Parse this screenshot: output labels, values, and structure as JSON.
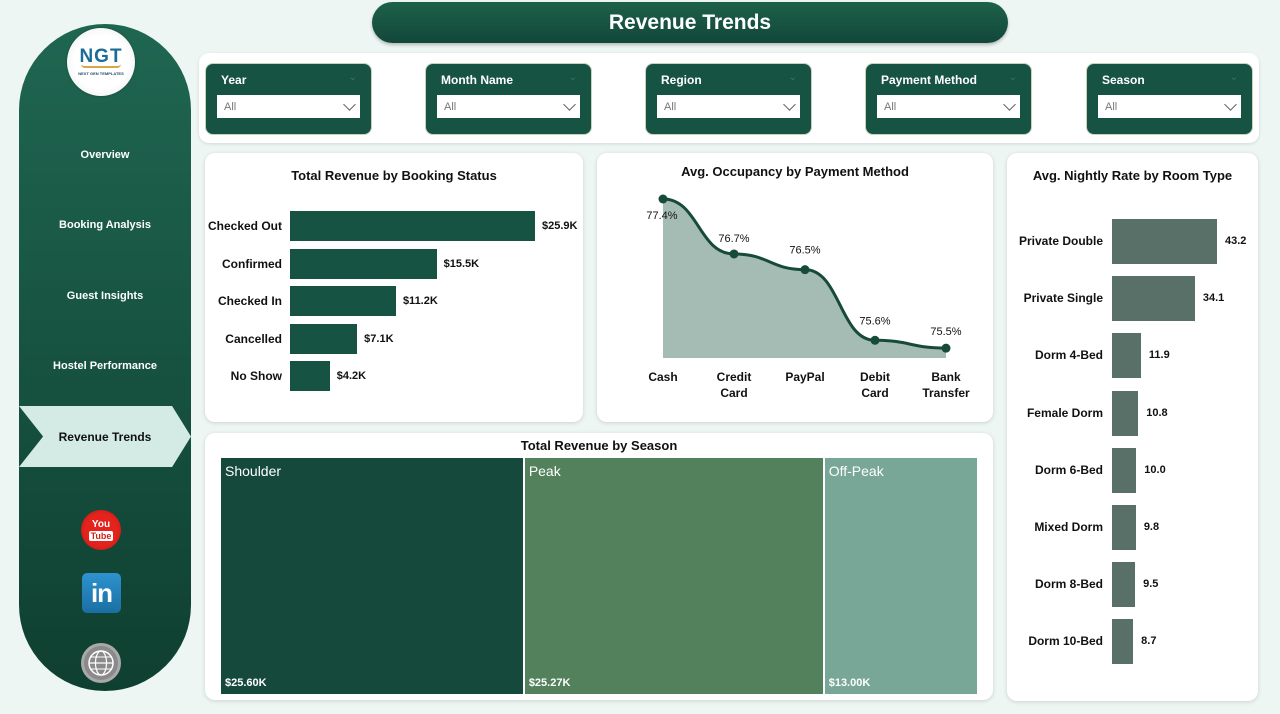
{
  "page": {
    "title": "Revenue Trends"
  },
  "logo": {
    "text": "NGT",
    "subtitle": "NEXT GEN TEMPLATES"
  },
  "sidebar": {
    "items": [
      {
        "label": "Overview"
      },
      {
        "label": "Booking Analysis"
      },
      {
        "label": "Guest Insights"
      },
      {
        "label": "Hostel Performance"
      },
      {
        "label": "Revenue Trends",
        "active": true
      }
    ],
    "social": [
      {
        "icon": "youtube-icon",
        "line1": "You",
        "line2": "Tube"
      },
      {
        "icon": "linkedin-icon",
        "text": "in"
      },
      {
        "icon": "globe-www-icon"
      }
    ]
  },
  "filters": [
    {
      "label": "Year",
      "value": "All"
    },
    {
      "label": "Month Name",
      "value": "All"
    },
    {
      "label": "Region",
      "value": "All"
    },
    {
      "label": "Payment Method",
      "value": "All"
    },
    {
      "label": "Season",
      "value": "All"
    }
  ],
  "colors": {
    "primary": "#175343",
    "nightly_bar": "#587068",
    "area_fill": "#a5bcb4",
    "line": "#174a3a",
    "season_shoulder": "#15493b",
    "season_peak": "#52815c",
    "season_offpeak": "#78a798"
  },
  "chart_data": [
    {
      "type": "bar",
      "orientation": "horizontal",
      "title": "Total Revenue by Booking Status",
      "categories": [
        "Checked Out",
        "Confirmed",
        "Checked In",
        "Cancelled",
        "No Show"
      ],
      "values": [
        25.9,
        15.5,
        11.2,
        7.1,
        4.2
      ],
      "value_labels": [
        "$25.9K",
        "$15.5K",
        "$11.2K",
        "$7.1K",
        "$4.2K"
      ],
      "unit": "K USD"
    },
    {
      "type": "area",
      "title": "Avg. Occupancy by Payment Method",
      "categories": [
        "Cash",
        "Credit Card",
        "PayPal",
        "Debit Card",
        "Bank Transfer"
      ],
      "category_lines": [
        [
          "Cash"
        ],
        [
          "Credit",
          "Card"
        ],
        [
          "PayPal"
        ],
        [
          "Debit",
          "Card"
        ],
        [
          "Bank",
          "Transfer"
        ]
      ],
      "values": [
        77.4,
        76.7,
        76.5,
        75.6,
        75.5
      ],
      "value_labels": [
        "77.4%",
        "76.7%",
        "76.5%",
        "75.6%",
        "75.5%"
      ],
      "unit": "%"
    },
    {
      "type": "bar",
      "orientation": "horizontal",
      "title": "Avg. Nightly Rate by Room Type",
      "categories": [
        "Private Double",
        "Private Single",
        "Dorm 4-Bed",
        "Female Dorm",
        "Dorm 6-Bed",
        "Mixed Dorm",
        "Dorm 8-Bed",
        "Dorm 10-Bed"
      ],
      "values": [
        43.2,
        34.1,
        11.9,
        10.8,
        10.0,
        9.8,
        9.5,
        8.7
      ],
      "value_labels": [
        "43.2",
        "34.1",
        "11.9",
        "10.8",
        "10.0",
        "9.8",
        "9.5",
        "8.7"
      ]
    },
    {
      "type": "treemap",
      "title": "Total Revenue by Season",
      "categories": [
        "Shoulder",
        "Peak",
        "Off-Peak"
      ],
      "values": [
        25.6,
        25.27,
        13.0
      ],
      "value_labels": [
        "$25.60K",
        "$25.27K",
        "$13.00K"
      ],
      "unit": "K USD"
    }
  ]
}
